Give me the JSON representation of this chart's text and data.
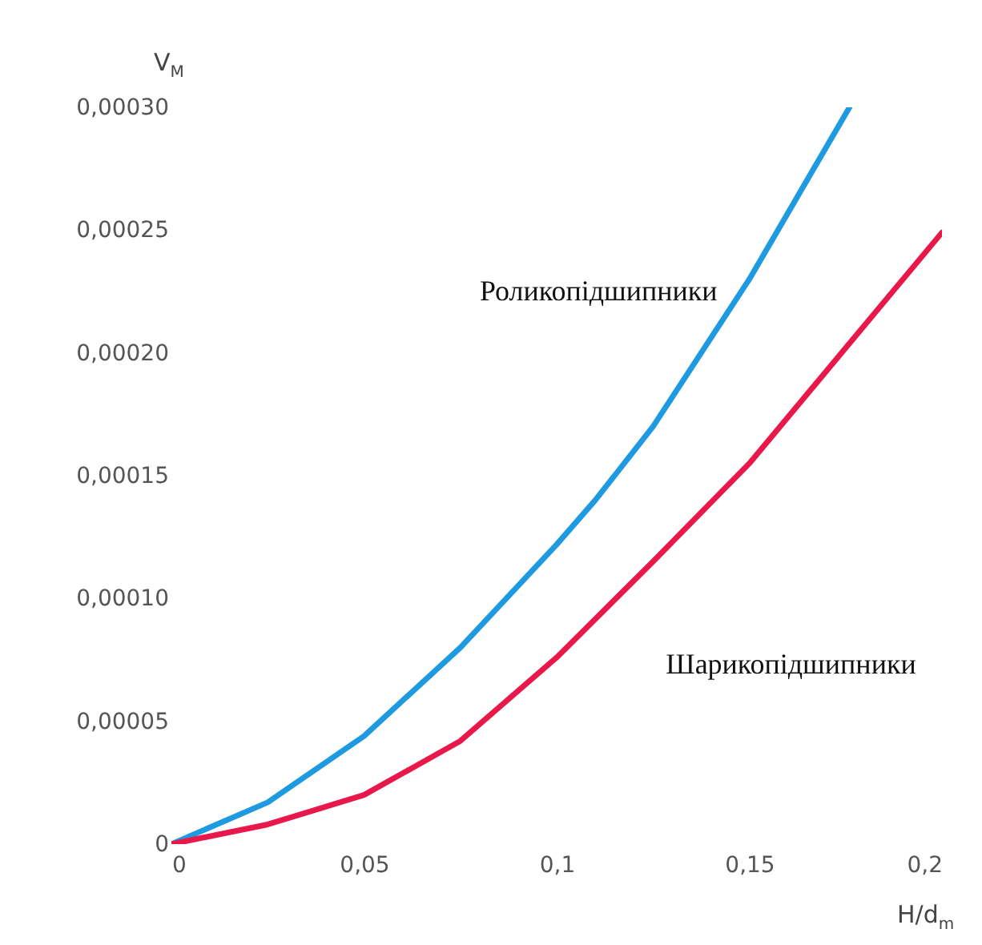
{
  "chart_data": {
    "type": "line",
    "xlabel": "H/d$_{m}$",
    "ylabel": "V$_{М}$",
    "xlim": [
      0,
      0.2
    ],
    "ylim": [
      0,
      0.0003
    ],
    "xticks": [
      0,
      {
        "value": 0.05,
        "label": "0,05"
      },
      {
        "value": 0.1,
        "label": "0,1"
      },
      {
        "value": 0.15,
        "label": "0,15"
      },
      {
        "value": 0.2,
        "label": "0,2"
      }
    ],
    "yticks": [
      0,
      {
        "value": 5e-05,
        "label": "0,00005"
      },
      {
        "value": 0.0001,
        "label": "0,00010"
      },
      {
        "value": 0.00015,
        "label": "0,00015"
      },
      {
        "value": 0.0002,
        "label": "0,00020"
      },
      {
        "value": 0.00025,
        "label": "0,00025"
      },
      {
        "value": 0.0003,
        "label": "0,00030"
      }
    ],
    "grid": false,
    "marker": "none",
    "line_style": "solid",
    "series": [
      {
        "name": "Роликопідшипники",
        "color": "#1e9be0",
        "x": [
          0,
          0.025,
          0.05,
          0.075,
          0.1,
          0.11,
          0.125,
          0.15,
          0.176
        ],
        "values": [
          0,
          1.7e-05,
          4.4e-05,
          8e-05,
          0.000122,
          0.00014,
          0.00017,
          0.00023,
          0.0003
        ]
      },
      {
        "name": "Шарикопідшипники",
        "color": "#e8194a",
        "x": [
          0,
          0.025,
          0.05,
          0.075,
          0.1,
          0.125,
          0.15,
          0.175,
          0.2
        ],
        "values": [
          0,
          8e-06,
          2e-05,
          4.2e-05,
          7.6e-05,
          0.000115,
          0.000155,
          0.000202,
          0.000249
        ]
      }
    ]
  }
}
